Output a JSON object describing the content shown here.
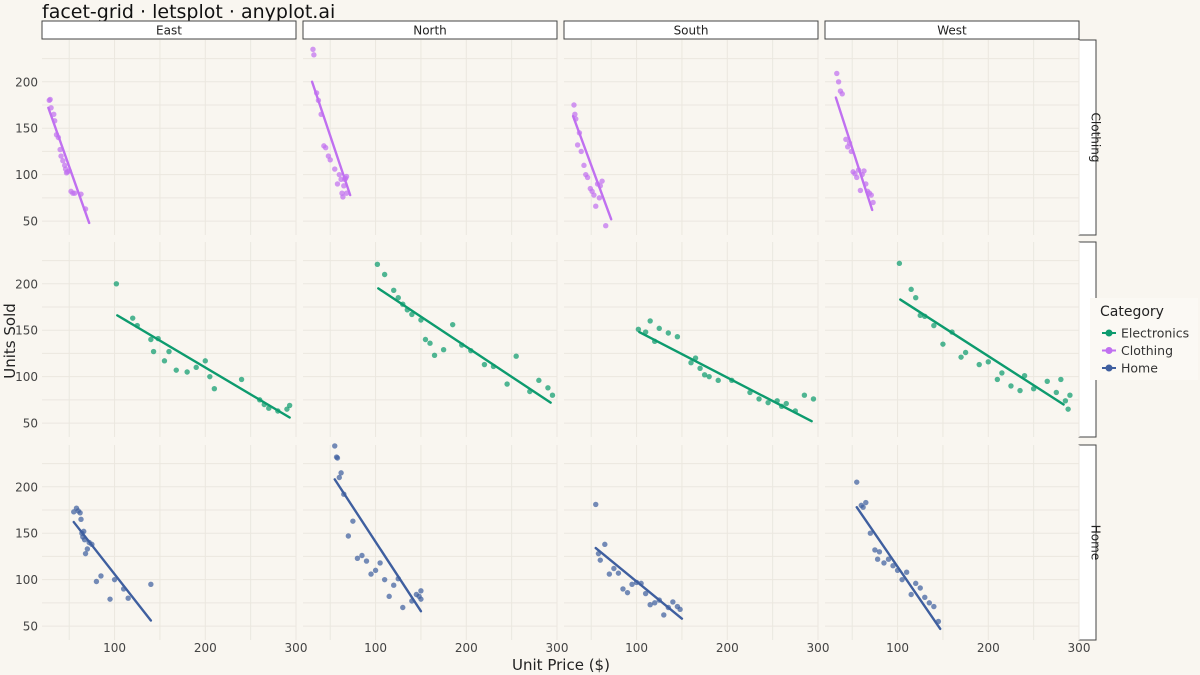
{
  "chart_data": {
    "type": "scatter",
    "title": "facet-grid · letsplot · anyplot.ai",
    "xlabel": "Unit Price ($)",
    "ylabel": "Units Sold",
    "xlim": [
      20,
      300
    ],
    "ylim": [
      35,
      245
    ],
    "x_ticks": [
      100,
      200,
      300
    ],
    "y_ticks": [
      50,
      100,
      150,
      200
    ],
    "grid": true,
    "legend_title": "Category",
    "legend_position": "right",
    "col_facets": [
      "East",
      "North",
      "South",
      "West"
    ],
    "row_facets": [
      "Clothing",
      "Electronics",
      "Home"
    ],
    "colors": {
      "Electronics": "#0d9b6e",
      "Clothing": "#c070f0",
      "Home": "#3f5f9f"
    },
    "legend": [
      "Electronics",
      "Clothing",
      "Home"
    ],
    "facets": [
      {
        "row": "Clothing",
        "col": "East",
        "trend": [
          [
            27,
            172
          ],
          [
            72,
            48
          ]
        ],
        "points": [
          [
            28,
            180
          ],
          [
            29,
            181
          ],
          [
            30,
            172
          ],
          [
            33,
            165
          ],
          [
            34,
            158
          ],
          [
            36,
            143
          ],
          [
            38,
            140
          ],
          [
            40,
            127
          ],
          [
            41,
            120
          ],
          [
            43,
            115
          ],
          [
            45,
            110
          ],
          [
            46,
            106
          ],
          [
            47,
            102
          ],
          [
            48,
            103
          ],
          [
            50,
            104
          ],
          [
            52,
            82
          ],
          [
            54,
            80
          ],
          [
            56,
            80
          ],
          [
            63,
            79
          ],
          [
            68,
            63
          ]
        ]
      },
      {
        "row": "Clothing",
        "col": "North",
        "trend": [
          [
            30,
            200
          ],
          [
            72,
            78
          ]
        ],
        "points": [
          [
            31,
            235
          ],
          [
            32,
            229
          ],
          [
            35,
            188
          ],
          [
            37,
            180
          ],
          [
            40,
            165
          ],
          [
            43,
            131
          ],
          [
            45,
            129
          ],
          [
            48,
            120
          ],
          [
            50,
            116
          ],
          [
            55,
            106
          ],
          [
            58,
            90
          ],
          [
            60,
            100
          ],
          [
            62,
            95
          ],
          [
            63,
            80
          ],
          [
            64,
            76
          ],
          [
            65,
            88
          ],
          [
            66,
            95
          ],
          [
            67,
            96
          ],
          [
            68,
            98
          ],
          [
            68,
            80
          ]
        ]
      },
      {
        "row": "Clothing",
        "col": "South",
        "trend": [
          [
            30,
            163
          ],
          [
            72,
            52
          ]
        ],
        "points": [
          [
            31,
            175
          ],
          [
            32,
            165
          ],
          [
            33,
            160
          ],
          [
            35,
            132
          ],
          [
            37,
            145
          ],
          [
            39,
            125
          ],
          [
            42,
            110
          ],
          [
            44,
            100
          ],
          [
            46,
            97
          ],
          [
            49,
            85
          ],
          [
            51,
            82
          ],
          [
            53,
            78
          ],
          [
            55,
            66
          ],
          [
            57,
            90
          ],
          [
            59,
            75
          ],
          [
            60,
            88
          ],
          [
            62,
            93
          ],
          [
            66,
            45
          ]
        ]
      },
      {
        "row": "Clothing",
        "col": "West",
        "trend": [
          [
            32,
            183
          ],
          [
            72,
            62
          ]
        ],
        "points": [
          [
            33,
            209
          ],
          [
            35,
            200
          ],
          [
            37,
            190
          ],
          [
            39,
            187
          ],
          [
            43,
            138
          ],
          [
            45,
            130
          ],
          [
            47,
            134
          ],
          [
            49,
            125
          ],
          [
            51,
            103
          ],
          [
            53,
            101
          ],
          [
            55,
            97
          ],
          [
            57,
            105
          ],
          [
            59,
            83
          ],
          [
            61,
            100
          ],
          [
            63,
            104
          ],
          [
            65,
            90
          ],
          [
            67,
            82
          ],
          [
            69,
            80
          ],
          [
            71,
            78
          ],
          [
            73,
            70
          ]
        ]
      },
      {
        "row": "Electronics",
        "col": "East",
        "trend": [
          [
            103,
            166
          ],
          [
            293,
            56
          ]
        ],
        "points": [
          [
            102,
            200
          ],
          [
            120,
            163
          ],
          [
            125,
            155
          ],
          [
            140,
            140
          ],
          [
            143,
            127
          ],
          [
            148,
            141
          ],
          [
            155,
            117
          ],
          [
            160,
            127
          ],
          [
            168,
            107
          ],
          [
            180,
            105
          ],
          [
            190,
            110
          ],
          [
            200,
            117
          ],
          [
            205,
            100
          ],
          [
            210,
            87
          ],
          [
            240,
            97
          ],
          [
            260,
            75
          ],
          [
            265,
            70
          ],
          [
            270,
            66
          ],
          [
            280,
            63
          ],
          [
            290,
            65
          ],
          [
            293,
            69
          ]
        ]
      },
      {
        "row": "Electronics",
        "col": "North",
        "trend": [
          [
            103,
            195
          ],
          [
            293,
            72
          ]
        ],
        "points": [
          [
            102,
            221
          ],
          [
            110,
            210
          ],
          [
            120,
            193
          ],
          [
            125,
            185
          ],
          [
            130,
            178
          ],
          [
            135,
            172
          ],
          [
            140,
            167
          ],
          [
            150,
            161
          ],
          [
            155,
            140
          ],
          [
            160,
            136
          ],
          [
            165,
            123
          ],
          [
            175,
            129
          ],
          [
            185,
            156
          ],
          [
            195,
            134
          ],
          [
            205,
            128
          ],
          [
            220,
            113
          ],
          [
            230,
            111
          ],
          [
            245,
            92
          ],
          [
            255,
            122
          ],
          [
            270,
            84
          ],
          [
            280,
            96
          ],
          [
            290,
            88
          ],
          [
            295,
            80
          ]
        ]
      },
      {
        "row": "Electronics",
        "col": "South",
        "trend": [
          [
            103,
            148
          ],
          [
            293,
            52
          ]
        ],
        "points": [
          [
            102,
            151
          ],
          [
            110,
            148
          ],
          [
            115,
            160
          ],
          [
            120,
            138
          ],
          [
            125,
            152
          ],
          [
            135,
            147
          ],
          [
            145,
            143
          ],
          [
            160,
            115
          ],
          [
            165,
            120
          ],
          [
            170,
            109
          ],
          [
            175,
            102
          ],
          [
            180,
            100
          ],
          [
            190,
            96
          ],
          [
            205,
            96
          ],
          [
            225,
            83
          ],
          [
            235,
            76
          ],
          [
            245,
            72
          ],
          [
            255,
            74
          ],
          [
            260,
            68
          ],
          [
            265,
            71
          ],
          [
            275,
            63
          ],
          [
            285,
            80
          ],
          [
            295,
            76
          ]
        ]
      },
      {
        "row": "Electronics",
        "col": "West",
        "trend": [
          [
            103,
            183
          ],
          [
            283,
            70
          ]
        ],
        "points": [
          [
            102,
            222
          ],
          [
            115,
            194
          ],
          [
            120,
            185
          ],
          [
            125,
            166
          ],
          [
            130,
            165
          ],
          [
            140,
            155
          ],
          [
            150,
            135
          ],
          [
            160,
            148
          ],
          [
            170,
            121
          ],
          [
            175,
            126
          ],
          [
            190,
            113
          ],
          [
            200,
            116
          ],
          [
            210,
            97
          ],
          [
            215,
            104
          ],
          [
            225,
            90
          ],
          [
            235,
            85
          ],
          [
            240,
            101
          ],
          [
            250,
            87
          ],
          [
            265,
            95
          ],
          [
            275,
            83
          ],
          [
            280,
            97
          ],
          [
            285,
            74
          ],
          [
            288,
            65
          ],
          [
            290,
            80
          ]
        ]
      },
      {
        "row": "Home",
        "col": "East",
        "trend": [
          [
            55,
            162
          ],
          [
            140,
            56
          ]
        ],
        "points": [
          [
            55,
            173
          ],
          [
            58,
            177
          ],
          [
            60,
            174
          ],
          [
            62,
            172
          ],
          [
            63,
            165
          ],
          [
            64,
            150
          ],
          [
            65,
            146
          ],
          [
            66,
            152
          ],
          [
            67,
            143
          ],
          [
            68,
            128
          ],
          [
            70,
            133
          ],
          [
            72,
            140
          ],
          [
            75,
            138
          ],
          [
            80,
            98
          ],
          [
            85,
            104
          ],
          [
            95,
            79
          ],
          [
            100,
            100
          ],
          [
            110,
            90
          ],
          [
            115,
            80
          ],
          [
            140,
            95
          ]
        ]
      },
      {
        "row": "Home",
        "col": "North",
        "trend": [
          [
            55,
            208
          ],
          [
            150,
            66
          ]
        ],
        "points": [
          [
            55,
            244
          ],
          [
            57,
            232
          ],
          [
            58,
            231
          ],
          [
            60,
            210
          ],
          [
            62,
            215
          ],
          [
            65,
            192
          ],
          [
            70,
            147
          ],
          [
            75,
            163
          ],
          [
            80,
            123
          ],
          [
            85,
            126
          ],
          [
            90,
            120
          ],
          [
            95,
            106
          ],
          [
            100,
            110
          ],
          [
            105,
            118
          ],
          [
            110,
            100
          ],
          [
            115,
            82
          ],
          [
            120,
            94
          ],
          [
            125,
            101
          ],
          [
            130,
            70
          ],
          [
            140,
            77
          ],
          [
            145,
            84
          ],
          [
            148,
            82
          ],
          [
            150,
            79
          ],
          [
            150,
            88
          ]
        ]
      },
      {
        "row": "Home",
        "col": "South",
        "trend": [
          [
            55,
            134
          ],
          [
            150,
            58
          ]
        ],
        "points": [
          [
            55,
            181
          ],
          [
            58,
            128
          ],
          [
            60,
            121
          ],
          [
            65,
            138
          ],
          [
            70,
            106
          ],
          [
            75,
            112
          ],
          [
            80,
            107
          ],
          [
            85,
            90
          ],
          [
            90,
            86
          ],
          [
            95,
            95
          ],
          [
            100,
            97
          ],
          [
            105,
            96
          ],
          [
            110,
            85
          ],
          [
            115,
            73
          ],
          [
            120,
            75
          ],
          [
            125,
            78
          ],
          [
            130,
            62
          ],
          [
            135,
            70
          ],
          [
            140,
            76
          ],
          [
            145,
            71
          ],
          [
            148,
            68
          ]
        ]
      },
      {
        "row": "Home",
        "col": "West",
        "trend": [
          [
            55,
            178
          ],
          [
            147,
            47
          ]
        ],
        "points": [
          [
            55,
            205
          ],
          [
            60,
            180
          ],
          [
            62,
            178
          ],
          [
            65,
            183
          ],
          [
            70,
            150
          ],
          [
            75,
            132
          ],
          [
            78,
            122
          ],
          [
            80,
            130
          ],
          [
            85,
            118
          ],
          [
            90,
            122
          ],
          [
            95,
            115
          ],
          [
            100,
            110
          ],
          [
            105,
            100
          ],
          [
            110,
            108
          ],
          [
            115,
            84
          ],
          [
            120,
            96
          ],
          [
            125,
            91
          ],
          [
            130,
            81
          ],
          [
            135,
            75
          ],
          [
            140,
            71
          ],
          [
            145,
            55
          ]
        ]
      }
    ]
  }
}
